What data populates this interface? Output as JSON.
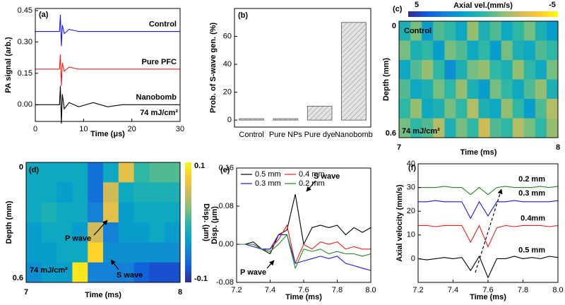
{
  "chart_data": [
    {
      "type": "line",
      "panel_label": "(a)",
      "xlabel": "Time (μs)",
      "ylabel": "PA signal (arb.)",
      "annotations": [
        "74 mJ/cm²"
      ],
      "x": [
        0,
        3,
        5,
        5.2,
        5.4,
        5.6,
        6,
        7,
        9,
        12,
        15,
        18,
        21,
        24,
        27,
        30
      ],
      "xlim": [
        0,
        30
      ],
      "xticks": [
        0,
        10,
        20,
        30
      ],
      "ylim": [
        -0.08,
        0.46
      ],
      "yticks": [
        {
          "value": 0,
          "label": "0.00"
        },
        0.15,
        {
          "value": 0.3,
          "label": "0.30"
        },
        0.45
      ],
      "legend": "inline",
      "series": [
        {
          "name": "Control",
          "color": "#1a1adf",
          "values": [
            0.35,
            0.35,
            0.35,
            0.43,
            0.28,
            0.38,
            0.34,
            0.36,
            0.35,
            0.35,
            0.35,
            0.35,
            0.35,
            0.35,
            0.35,
            0.35
          ]
        },
        {
          "name": "Pure PFC",
          "color": "#e8201c",
          "values": [
            0.17,
            0.17,
            0.17,
            0.24,
            0.09,
            0.2,
            0.16,
            0.18,
            0.17,
            0.17,
            0.17,
            0.17,
            0.17,
            0.17,
            0.17,
            0.17
          ]
        },
        {
          "name": "Nanobomb",
          "color": "#000000",
          "values": [
            0,
            0,
            0,
            0.09,
            -0.09,
            0.05,
            -0.02,
            0.01,
            -0.01,
            0.01,
            -0.01,
            0,
            0,
            0,
            0,
            0
          ]
        }
      ]
    },
    {
      "type": "bar",
      "panel_label": "(b)",
      "ylabel": "Prob. of S-wave gen. (%)",
      "categories": [
        "Control",
        "Pure NPs",
        "Pure dye",
        "Nanobomb"
      ],
      "values": [
        1,
        1,
        10,
        70
      ],
      "color": "#e4e4e4",
      "ylim": [
        -5,
        80
      ],
      "yticks": [
        0,
        20,
        40,
        60
      ]
    },
    {
      "type": "heatmap",
      "panel_label": "(c)",
      "xlabel": "Time (ms)",
      "ylabel": "Depth (mm)",
      "colorbar_label": "Axial vel.(mm/s)",
      "colorbar": "top",
      "annotations": [
        "Control",
        "74 mJ/cm²"
      ],
      "xlim": [
        7,
        8
      ],
      "xticks": [
        7,
        8
      ],
      "ylim": [
        0,
        0.6
      ],
      "yticks": [
        0,
        0.6
      ],
      "y_reversed": true,
      "zlim": [
        5,
        -5
      ],
      "zticks": [
        5,
        -5
      ],
      "z": [
        [
          0.5,
          -1,
          1.5,
          -0.5,
          0,
          1,
          -1.5,
          0.5,
          -0.5,
          1,
          0,
          -1,
          0.5,
          1.5
        ],
        [
          -1,
          0.5,
          0,
          1.5,
          -1,
          -0.5,
          1,
          0,
          1.5,
          -1,
          0.5,
          1,
          -0.5,
          0
        ],
        [
          1,
          -0.5,
          -1.5,
          0,
          2,
          0.5,
          -1,
          -1.5,
          0,
          0.5,
          -1.5,
          0,
          1,
          -1
        ],
        [
          -0.5,
          1,
          0.5,
          -1,
          0,
          -1.5,
          0.5,
          1.5,
          -1,
          0,
          1,
          -0.5,
          -1.5,
          0.5
        ],
        [
          0,
          -1.5,
          1,
          0.5,
          -1,
          0,
          -2,
          0.5,
          1,
          -1.5,
          0,
          1.5,
          -0.5,
          -2
        ],
        [
          -1,
          0,
          -0.5,
          -2,
          0.5,
          -1,
          0,
          -2.5,
          -0.5,
          0,
          -2,
          -1,
          0,
          -1.5
        ]
      ]
    },
    {
      "type": "heatmap",
      "panel_label": "(d)",
      "xlabel": "Time (ms)",
      "ylabel": "Depth (mm)",
      "colorbar_label": "Disp. (μm)",
      "colorbar": "right",
      "annotations": [
        "P wave",
        "S wave",
        "74 mJ/cm²"
      ],
      "xlim": [
        7,
        8
      ],
      "xticks": [
        7,
        8
      ],
      "ylim": [
        0,
        0.6
      ],
      "yticks": [
        0,
        0.6
      ],
      "y_reversed": true,
      "zlim": [
        -0.1,
        0.1
      ],
      "zticks": [
        -0.1,
        0.1
      ],
      "z": [
        [
          -0.02,
          -0.02,
          -0.02,
          -0.02,
          -0.06,
          -0.02,
          0.06,
          0,
          0.01,
          0.01
        ],
        [
          -0.02,
          -0.02,
          -0.03,
          -0.02,
          -0.06,
          0.05,
          -0.02,
          -0.01,
          -0.01,
          -0.01
        ],
        [
          -0.02,
          -0.01,
          -0.02,
          -0.02,
          -0.05,
          0.06,
          -0.03,
          -0.02,
          -0.02,
          -0.02
        ],
        [
          -0.03,
          -0.02,
          -0.02,
          -0.03,
          0.05,
          -0.05,
          -0.03,
          -0.03,
          -0.02,
          -0.03
        ],
        [
          -0.03,
          -0.03,
          -0.02,
          -0.02,
          0.08,
          -0.04,
          -0.04,
          -0.04,
          -0.04,
          -0.04
        ],
        [
          -0.04,
          -0.03,
          -0.03,
          0.09,
          -0.05,
          -0.05,
          -0.05,
          -0.07,
          -0.08,
          -0.08
        ]
      ]
    },
    {
      "type": "line",
      "panel_label": "(e)",
      "xlabel": "Time (ms)",
      "ylabel": "Disp. (μm)",
      "annotations": [
        "S wave",
        "P wave"
      ],
      "x": [
        7.2,
        7.25,
        7.3,
        7.35,
        7.4,
        7.45,
        7.5,
        7.55,
        7.6,
        7.65,
        7.7,
        7.75,
        7.8,
        7.85,
        7.9,
        7.95,
        8.0
      ],
      "xlim": [
        7.2,
        8.0
      ],
      "xticks": [
        7.2,
        7.4,
        7.6,
        7.8,
        {
          "value": 8,
          "label": "8.0"
        }
      ],
      "ylim": [
        -0.08,
        0.16
      ],
      "yticks": [
        -0.08,
        {
          "value": 0,
          "label": "0.00"
        },
        0.08,
        0.16
      ],
      "legend": "upper left",
      "series": [
        {
          "name": "0.5 mm",
          "color": "#000000",
          "values": [
            0,
            0,
            0.005,
            -0.01,
            -0.02,
            0.02,
            0.03,
            0.105,
            0,
            0.035,
            0.04,
            0.035,
            0.04,
            0.02,
            0.035,
            0.025,
            0.035
          ]
        },
        {
          "name": "0.4 mm",
          "color": "#e8201c",
          "values": [
            0,
            0,
            0,
            -0.01,
            -0.01,
            0.01,
            0.04,
            -0.04,
            0,
            -0.01,
            0.005,
            0,
            0.005,
            -0.01,
            -0.005,
            -0.01,
            -0.01
          ]
        },
        {
          "name": "0.3 mm",
          "color": "#1a1adf",
          "values": [
            0,
            0,
            -0.005,
            -0.01,
            -0.01,
            0.02,
            0.02,
            -0.04,
            -0.035,
            -0.03,
            -0.025,
            -0.03,
            -0.025,
            -0.04,
            -0.045,
            -0.05,
            -0.055
          ]
        },
        {
          "name": "0.2 mm",
          "color": "#1f8a1f",
          "values": [
            0,
            0,
            0,
            -0.01,
            -0.015,
            0,
            0.02,
            -0.05,
            -0.01,
            -0.015,
            -0.01,
            -0.02,
            -0.015,
            -0.02,
            -0.02,
            -0.025,
            -0.02
          ]
        }
      ]
    },
    {
      "type": "line",
      "panel_label": "(f)",
      "xlabel": "Time (ms)",
      "ylabel": "Axial velocity (mm/s)",
      "x": [
        7.2,
        7.25,
        7.3,
        7.35,
        7.4,
        7.45,
        7.5,
        7.55,
        7.6,
        7.65,
        7.7,
        7.75,
        7.8,
        7.85,
        7.9,
        7.95,
        8.0
      ],
      "xlim": [
        7.2,
        8.0
      ],
      "xticks": [
        7.2,
        7.4,
        7.6,
        7.8,
        {
          "value": 8,
          "label": "8.0"
        }
      ],
      "ylim": [
        -10,
        40
      ],
      "yticks": [
        0,
        10,
        20,
        30,
        40
      ],
      "legend": "inline",
      "legend_text_color": "#000000",
      "series": [
        {
          "name": "0.2 mm",
          "color": "#1f8a1f",
          "values": [
            30,
            30,
            30,
            30.5,
            30,
            30,
            27,
            30,
            27,
            30,
            30.5,
            30,
            30,
            30,
            30.5,
            30,
            30.5
          ]
        },
        {
          "name": "0.3 mm",
          "color": "#1a1adf",
          "values": [
            24,
            24,
            24.5,
            24,
            24,
            24,
            17,
            24,
            18,
            24,
            24,
            24.5,
            24,
            24,
            24,
            24,
            24.5
          ]
        },
        {
          "name": "0.4mm",
          "color": "#e8201c",
          "values": [
            14,
            14,
            13.5,
            14,
            14,
            14,
            7,
            14,
            5,
            13,
            14,
            13.5,
            14,
            14,
            14,
            13.5,
            14
          ]
        },
        {
          "name": "0.5 mm",
          "color": "#000000",
          "values": [
            0,
            -0.5,
            0,
            0.5,
            0,
            0.5,
            -5,
            1,
            -8,
            0,
            0,
            1,
            0,
            0.5,
            0,
            1,
            0.5
          ]
        }
      ]
    }
  ]
}
